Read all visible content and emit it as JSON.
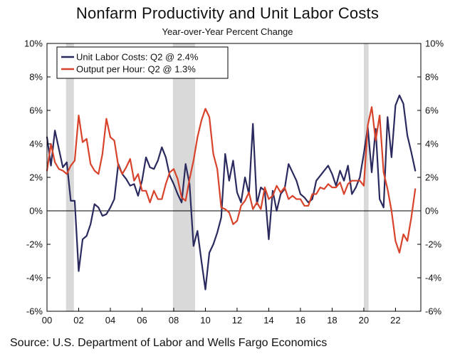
{
  "chart_data": {
    "type": "line",
    "title": "Nonfarm Productivity and Unit Labor Costs",
    "subtitle": "Year-over-Year Percent Change",
    "source": "Source: U.S. Department of Labor and Wells Fargo Economics",
    "xlim": [
      2000,
      2023.6
    ],
    "ylim": [
      -6,
      10
    ],
    "y_ticks": [
      -6,
      -4,
      -2,
      0,
      2,
      4,
      6,
      8,
      10
    ],
    "y_tick_labels": [
      "-6%",
      "-4%",
      "-2%",
      "0%",
      "2%",
      "4%",
      "6%",
      "8%",
      "10%"
    ],
    "x_ticks": [
      2000,
      2002,
      2004,
      2006,
      2008,
      2010,
      2012,
      2014,
      2016,
      2018,
      2020,
      2022
    ],
    "x_tick_labels": [
      "00",
      "02",
      "04",
      "06",
      "08",
      "10",
      "12",
      "14",
      "16",
      "18",
      "20",
      "22"
    ],
    "recessions": [
      [
        2001.2,
        2001.7
      ],
      [
        2007.95,
        2009.35
      ],
      [
        2020.0,
        2020.3
      ]
    ],
    "legend_position": "top-left",
    "colors": {
      "ulc": "#2b2a5e",
      "oph": "#d8432b",
      "recession": "#d9d9d9"
    },
    "series": [
      {
        "name": "Unit Labor Costs",
        "legend_label": "Unit Labor Costs: Q2 @ 2.4%",
        "color": "#2b2a5e",
        "points": [
          [
            2000.0,
            4.4
          ],
          [
            2000.25,
            2.7
          ],
          [
            2000.5,
            4.8
          ],
          [
            2000.75,
            3.7
          ],
          [
            2001.0,
            2.6
          ],
          [
            2001.25,
            2.9
          ],
          [
            2001.5,
            0.6
          ],
          [
            2001.75,
            0.6
          ],
          [
            2002.0,
            -3.6
          ],
          [
            2002.25,
            -1.7
          ],
          [
            2002.5,
            -1.5
          ],
          [
            2002.75,
            -0.8
          ],
          [
            2003.0,
            0.4
          ],
          [
            2003.25,
            0.2
          ],
          [
            2003.5,
            -0.3
          ],
          [
            2003.75,
            -0.2
          ],
          [
            2004.0,
            0.2
          ],
          [
            2004.25,
            0.7
          ],
          [
            2004.5,
            2.8
          ],
          [
            2004.75,
            2.2
          ],
          [
            2005.0,
            1.9
          ],
          [
            2005.25,
            1.5
          ],
          [
            2005.5,
            1.6
          ],
          [
            2005.75,
            0.9
          ],
          [
            2006.0,
            1.8
          ],
          [
            2006.25,
            3.2
          ],
          [
            2006.5,
            2.6
          ],
          [
            2006.75,
            2.5
          ],
          [
            2007.0,
            3.0
          ],
          [
            2007.25,
            3.8
          ],
          [
            2007.5,
            3.2
          ],
          [
            2007.75,
            2.1
          ],
          [
            2008.0,
            1.6
          ],
          [
            2008.25,
            1.0
          ],
          [
            2008.5,
            0.5
          ],
          [
            2008.75,
            2.8
          ],
          [
            2009.0,
            1.6
          ],
          [
            2009.25,
            -2.1
          ],
          [
            2009.5,
            -1.2
          ],
          [
            2009.75,
            -3.0
          ],
          [
            2010.0,
            -4.7
          ],
          [
            2010.25,
            -2.5
          ],
          [
            2010.5,
            -2.0
          ],
          [
            2010.75,
            -1.3
          ],
          [
            2011.0,
            -0.4
          ],
          [
            2011.25,
            3.4
          ],
          [
            2011.5,
            1.8
          ],
          [
            2011.75,
            3.0
          ],
          [
            2012.0,
            1.1
          ],
          [
            2012.25,
            0.5
          ],
          [
            2012.5,
            2.0
          ],
          [
            2012.75,
            1.0
          ],
          [
            2013.0,
            5.2
          ],
          [
            2013.25,
            0.4
          ],
          [
            2013.5,
            1.4
          ],
          [
            2013.75,
            1.2
          ],
          [
            2014.0,
            -1.7
          ],
          [
            2014.25,
            1.2
          ],
          [
            2014.5,
            0.0
          ],
          [
            2014.75,
            1.0
          ],
          [
            2015.0,
            1.3
          ],
          [
            2015.25,
            2.8
          ],
          [
            2015.5,
            2.3
          ],
          [
            2015.75,
            1.8
          ],
          [
            2016.0,
            1.0
          ],
          [
            2016.25,
            0.8
          ],
          [
            2016.5,
            0.5
          ],
          [
            2016.75,
            0.7
          ],
          [
            2017.0,
            1.8
          ],
          [
            2017.25,
            2.1
          ],
          [
            2017.5,
            2.4
          ],
          [
            2017.75,
            2.7
          ],
          [
            2018.0,
            2.2
          ],
          [
            2018.25,
            1.5
          ],
          [
            2018.5,
            2.4
          ],
          [
            2018.75,
            1.8
          ],
          [
            2019.0,
            2.7
          ],
          [
            2019.25,
            1.0
          ],
          [
            2019.5,
            1.4
          ],
          [
            2019.75,
            2.0
          ],
          [
            2020.0,
            3.4
          ],
          [
            2020.25,
            5.0
          ],
          [
            2020.5,
            2.3
          ],
          [
            2020.75,
            4.9
          ],
          [
            2021.0,
            0.7
          ],
          [
            2021.25,
            0.2
          ],
          [
            2021.5,
            5.6
          ],
          [
            2021.75,
            3.2
          ],
          [
            2022.0,
            6.3
          ],
          [
            2022.25,
            6.9
          ],
          [
            2022.5,
            6.4
          ],
          [
            2022.75,
            4.5
          ],
          [
            2023.0,
            3.5
          ],
          [
            2023.25,
            2.4
          ]
        ]
      },
      {
        "name": "Output per Hour",
        "legend_label": "Output per Hour: Q2 @ 1.3%",
        "color": "#d8432b",
        "points": [
          [
            2000.0,
            2.4
          ],
          [
            2000.25,
            4.0
          ],
          [
            2000.5,
            2.9
          ],
          [
            2000.75,
            2.5
          ],
          [
            2001.0,
            2.4
          ],
          [
            2001.25,
            2.2
          ],
          [
            2001.5,
            2.7
          ],
          [
            2001.75,
            3.0
          ],
          [
            2002.0,
            5.7
          ],
          [
            2002.25,
            4.1
          ],
          [
            2002.5,
            4.3
          ],
          [
            2002.75,
            2.8
          ],
          [
            2003.0,
            2.4
          ],
          [
            2003.25,
            2.2
          ],
          [
            2003.5,
            3.4
          ],
          [
            2003.75,
            5.5
          ],
          [
            2004.0,
            4.4
          ],
          [
            2004.25,
            4.2
          ],
          [
            2004.5,
            2.7
          ],
          [
            2004.75,
            2.2
          ],
          [
            2005.0,
            2.6
          ],
          [
            2005.25,
            3.1
          ],
          [
            2005.5,
            1.8
          ],
          [
            2005.75,
            2.2
          ],
          [
            2006.0,
            1.2
          ],
          [
            2006.25,
            1.2
          ],
          [
            2006.5,
            0.5
          ],
          [
            2006.75,
            1.2
          ],
          [
            2007.0,
            0.7
          ],
          [
            2007.25,
            0.7
          ],
          [
            2007.5,
            1.6
          ],
          [
            2007.75,
            2.3
          ],
          [
            2008.0,
            2.5
          ],
          [
            2008.25,
            1.9
          ],
          [
            2008.5,
            0.8
          ],
          [
            2008.75,
            0.6
          ],
          [
            2009.0,
            1.9
          ],
          [
            2009.25,
            3.0
          ],
          [
            2009.5,
            4.4
          ],
          [
            2009.75,
            5.4
          ],
          [
            2010.0,
            6.1
          ],
          [
            2010.25,
            5.6
          ],
          [
            2010.5,
            3.4
          ],
          [
            2010.75,
            2.5
          ],
          [
            2011.0,
            0.2
          ],
          [
            2011.25,
            0.1
          ],
          [
            2011.5,
            -0.1
          ],
          [
            2011.75,
            -0.8
          ],
          [
            2012.0,
            -0.6
          ],
          [
            2012.25,
            0.3
          ],
          [
            2012.5,
            0.6
          ],
          [
            2012.75,
            1.1
          ],
          [
            2013.0,
            0.1
          ],
          [
            2013.25,
            0.5
          ],
          [
            2013.5,
            0.1
          ],
          [
            2013.75,
            1.4
          ],
          [
            2014.0,
            0.7
          ],
          [
            2014.25,
            0.9
          ],
          [
            2014.5,
            1.5
          ],
          [
            2014.75,
            1.1
          ],
          [
            2015.0,
            1.4
          ],
          [
            2015.25,
            0.7
          ],
          [
            2015.5,
            0.9
          ],
          [
            2015.75,
            0.7
          ],
          [
            2016.0,
            0.7
          ],
          [
            2016.25,
            0.3
          ],
          [
            2016.5,
            0.3
          ],
          [
            2016.75,
            1.0
          ],
          [
            2017.0,
            1.0
          ],
          [
            2017.25,
            1.4
          ],
          [
            2017.5,
            1.3
          ],
          [
            2017.75,
            1.6
          ],
          [
            2018.0,
            1.4
          ],
          [
            2018.25,
            1.4
          ],
          [
            2018.5,
            1.7
          ],
          [
            2018.75,
            1.0
          ],
          [
            2019.0,
            1.6
          ],
          [
            2019.25,
            1.8
          ],
          [
            2019.5,
            1.8
          ],
          [
            2019.75,
            1.8
          ],
          [
            2020.0,
            1.5
          ],
          [
            2020.25,
            5.1
          ],
          [
            2020.5,
            6.2
          ],
          [
            2020.75,
            4.2
          ],
          [
            2021.0,
            5.7
          ],
          [
            2021.25,
            2.3
          ],
          [
            2021.5,
            1.3
          ],
          [
            2021.75,
            0.0
          ],
          [
            2022.0,
            -1.8
          ],
          [
            2022.25,
            -2.5
          ],
          [
            2022.5,
            -1.4
          ],
          [
            2022.75,
            -1.8
          ],
          [
            2023.0,
            -0.4
          ],
          [
            2023.25,
            1.3
          ]
        ]
      }
    ]
  }
}
